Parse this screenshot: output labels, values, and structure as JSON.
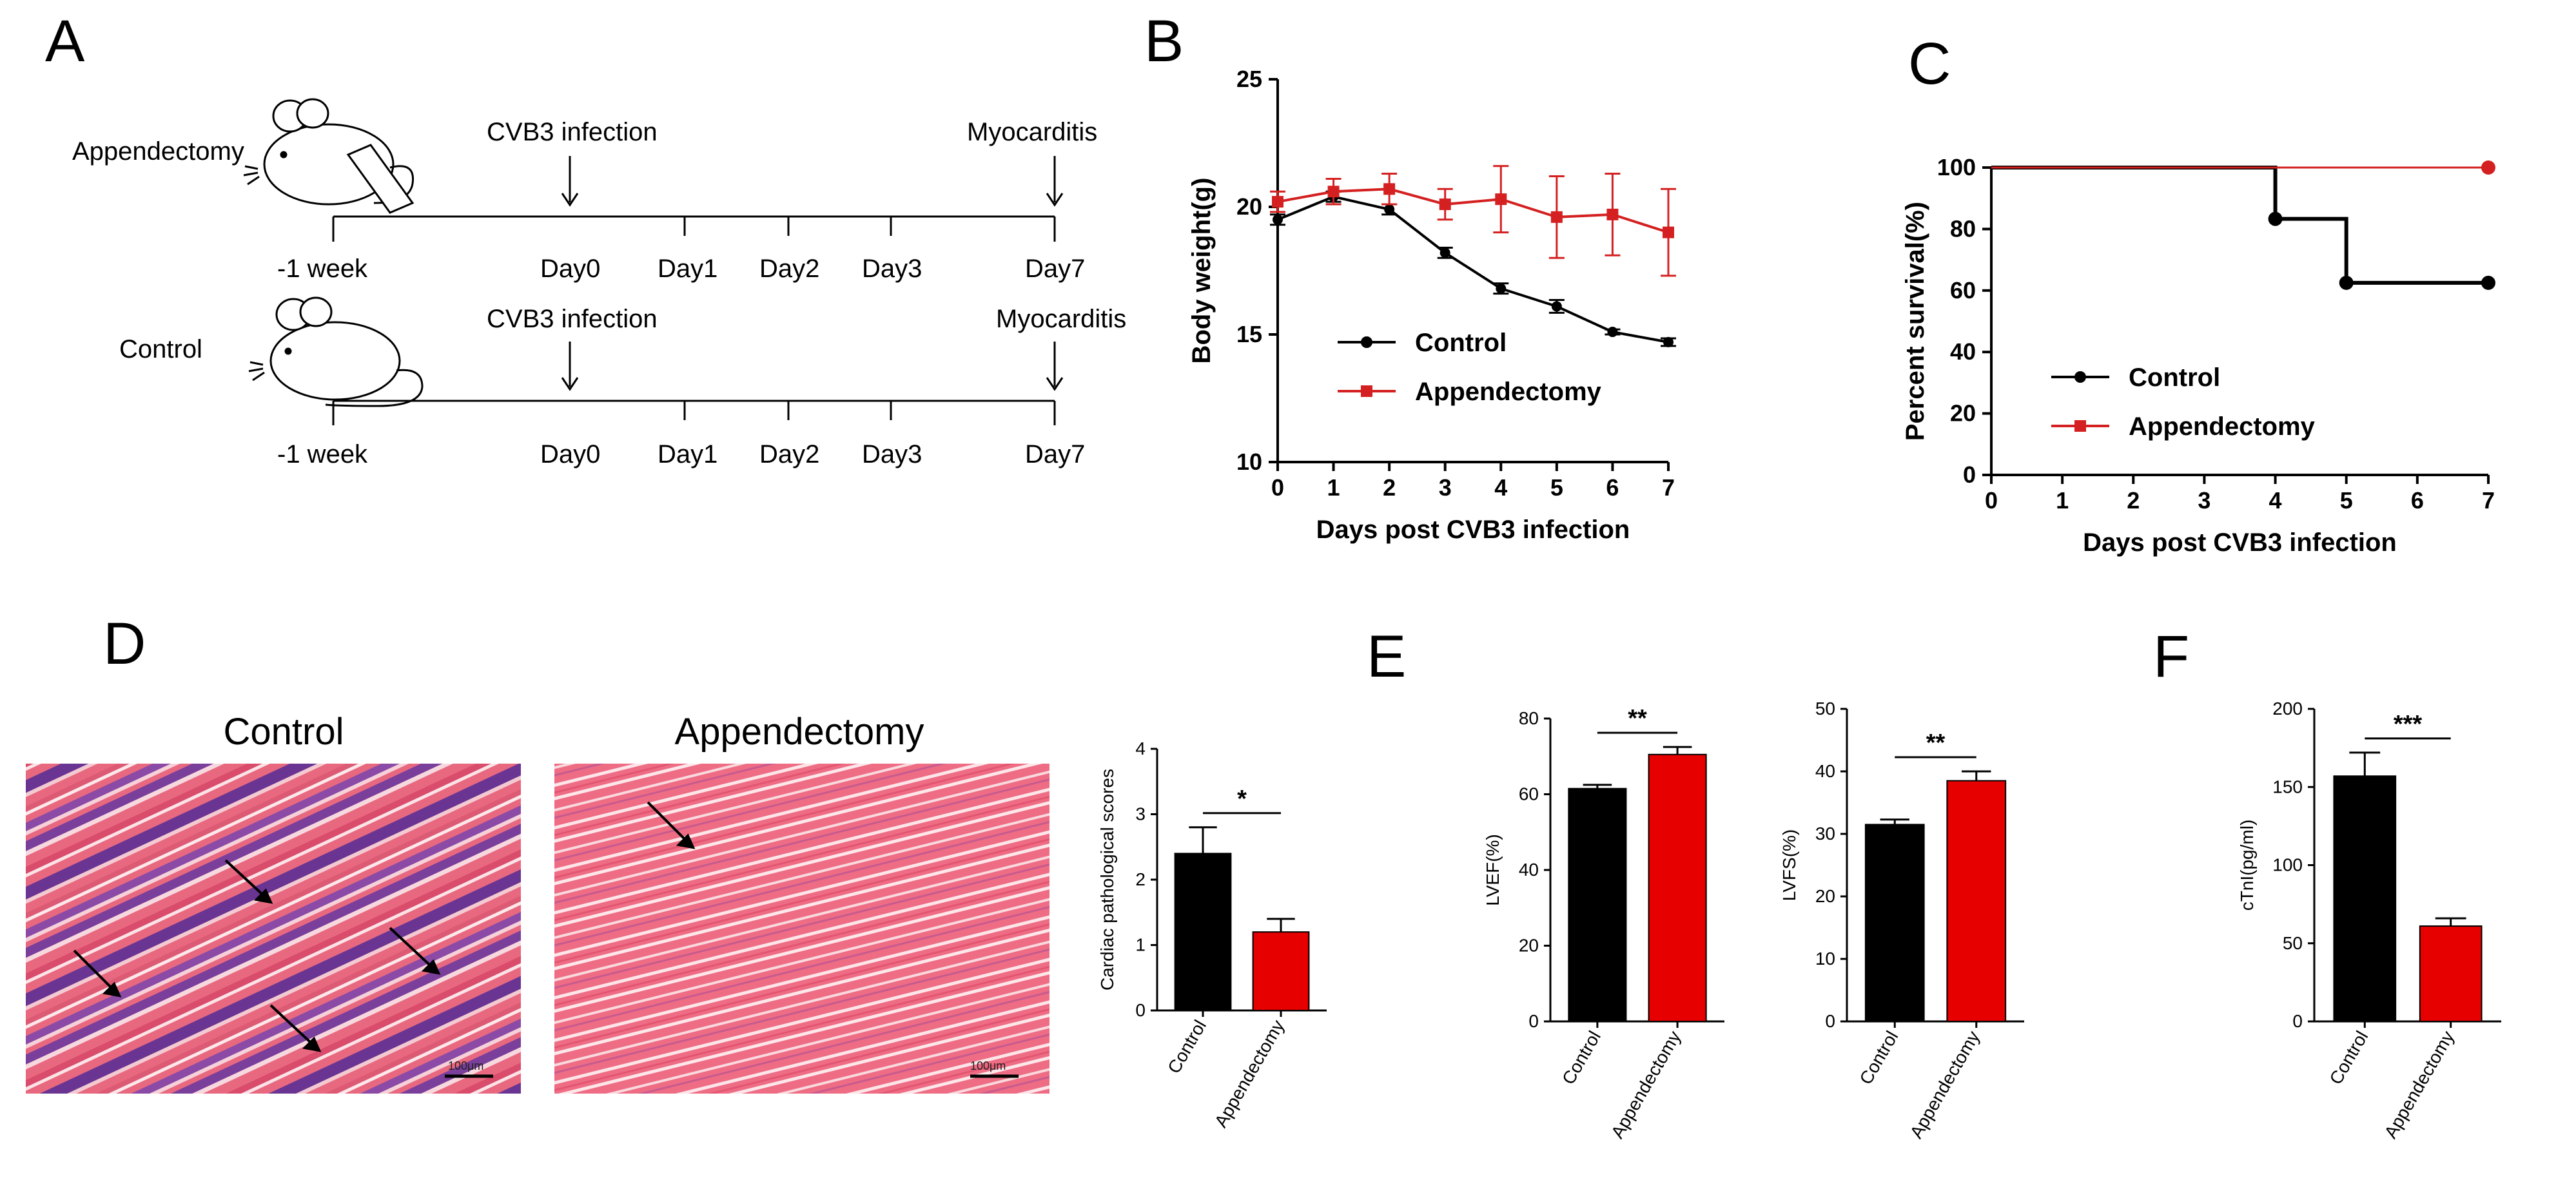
{
  "panels": {
    "A": "A",
    "B": "B",
    "C": "C",
    "D": "D",
    "E": "E",
    "F": "F"
  },
  "schematic": {
    "rows": [
      {
        "group": "Appendectomy",
        "infection": "CVB3 infection",
        "endpoint": "Myocarditis",
        "ticks": [
          "-1 week",
          "Day0",
          "Day1",
          "Day2",
          "Day3",
          "Day7"
        ]
      },
      {
        "group": "Control",
        "infection": "CVB3 infection",
        "endpoint": "Myocarditis",
        "ticks": [
          "-1 week",
          "Day0",
          "Day1",
          "Day2",
          "Day3",
          "Day7"
        ]
      }
    ]
  },
  "histology": {
    "control_title": "Control",
    "appendectomy_title": "Appendectomy",
    "scale_label": "100μm"
  },
  "colors": {
    "control": "#000000",
    "appendectomy": "#e60000",
    "line_appendectomy": "#d42020"
  },
  "chart_data": [
    {
      "id": "B",
      "type": "line",
      "xlabel": "Days post CVB3 infection",
      "ylabel": "Body weight(g)",
      "x": [
        0,
        1,
        2,
        3,
        4,
        5,
        6,
        7
      ],
      "xlim": [
        0,
        7
      ],
      "ylim": [
        10,
        25
      ],
      "yticks": [
        10,
        15,
        20,
        25
      ],
      "legend_position": "center-left",
      "series": [
        {
          "name": "Control",
          "values": [
            19.5,
            20.4,
            19.9,
            18.2,
            16.8,
            16.1,
            15.1,
            14.7
          ],
          "errors": [
            0.2,
            0.2,
            0.2,
            0.2,
            0.2,
            0.25,
            0.1,
            0.15
          ]
        },
        {
          "name": "Appendectomy",
          "values": [
            20.2,
            20.6,
            20.7,
            20.1,
            20.3,
            19.6,
            19.7,
            19.0
          ],
          "errors": [
            0.4,
            0.5,
            0.6,
            0.6,
            1.3,
            1.6,
            1.6,
            1.7
          ]
        }
      ]
    },
    {
      "id": "C",
      "type": "line",
      "xlabel": "Days post CVB3 infection",
      "ylabel": "Percent survival(%)",
      "x": [
        0,
        1,
        2,
        3,
        4,
        5,
        6,
        7
      ],
      "xlim": [
        0,
        7
      ],
      "ylim": [
        0,
        100
      ],
      "yticks": [
        0,
        20,
        40,
        60,
        80,
        100
      ],
      "legend_position": "center-left",
      "series": [
        {
          "name": "Control",
          "steps": [
            [
              0,
              100
            ],
            [
              4,
              100
            ],
            [
              4,
              83.3
            ],
            [
              5,
              83.3
            ],
            [
              5,
              62.5
            ],
            [
              7,
              62.5
            ]
          ],
          "points": [
            [
              4,
              83.3
            ],
            [
              5,
              62.5
            ],
            [
              7,
              62.5
            ]
          ]
        },
        {
          "name": "Appendectomy",
          "steps": [
            [
              0,
              100
            ],
            [
              7,
              100
            ]
          ],
          "points": [
            [
              7,
              100
            ]
          ]
        }
      ]
    },
    {
      "id": "D-bar",
      "type": "bar",
      "ylabel": "Cardiac pathological scores",
      "categories": [
        "Control",
        "Appendectomy"
      ],
      "values": [
        2.4,
        1.2
      ],
      "errors": [
        0.4,
        0.2
      ],
      "ylim": [
        0,
        4
      ],
      "yticks": [
        0,
        1,
        2,
        3,
        4
      ],
      "significance": "*"
    },
    {
      "id": "E-LVEF",
      "type": "bar",
      "ylabel": "LVEF(%)",
      "categories": [
        "Control",
        "Appendectomy"
      ],
      "values": [
        61.5,
        70.5
      ],
      "errors": [
        1,
        2
      ],
      "ylim": [
        0,
        80
      ],
      "yticks": [
        0,
        20,
        40,
        60,
        80
      ],
      "significance": "**"
    },
    {
      "id": "E-LVFS",
      "type": "bar",
      "ylabel": "LVFS(%)",
      "categories": [
        "Control",
        "Appendectomy"
      ],
      "values": [
        31.5,
        38.5
      ],
      "errors": [
        0.8,
        1.5
      ],
      "ylim": [
        0,
        50
      ],
      "yticks": [
        0,
        10,
        20,
        30,
        40,
        50
      ],
      "significance": "**"
    },
    {
      "id": "F",
      "type": "bar",
      "ylabel": "cTnI(pg/ml)",
      "categories": [
        "Control",
        "Appendectomy"
      ],
      "values": [
        157,
        61
      ],
      "errors": [
        15,
        5
      ],
      "ylim": [
        0,
        200
      ],
      "yticks": [
        0,
        50,
        100,
        150,
        200
      ],
      "significance": "***"
    }
  ]
}
